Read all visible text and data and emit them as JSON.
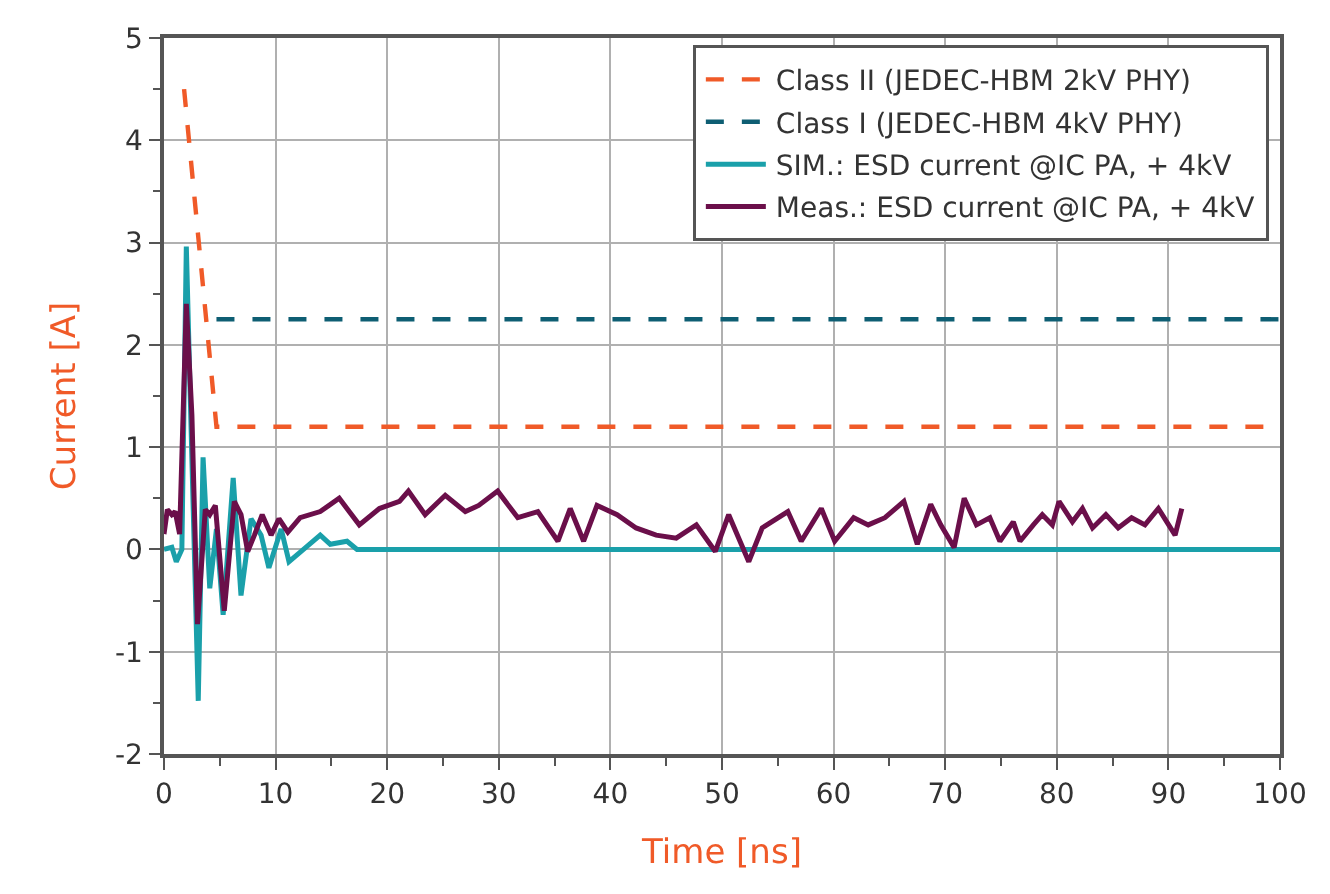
{
  "chart_data": {
    "type": "line",
    "xlabel": "Time [ns]",
    "ylabel": "Current [A]",
    "xlim": [
      0,
      100
    ],
    "xticks": [
      0,
      10,
      20,
      30,
      40,
      50,
      60,
      70,
      80,
      90,
      100
    ],
    "ylim": [
      -2,
      5
    ],
    "yticks": [
      -2,
      -1,
      0,
      1,
      2,
      3,
      4,
      5
    ],
    "grid": true,
    "legend": "top right",
    "marker": "none",
    "series": [
      {
        "name": "Class II (JEDEC-HBM 2kV PHY)",
        "color": "#f05a28",
        "line_style": "dashed",
        "x": [
          1.8,
          4.7,
          100
        ],
        "values": [
          4.5,
          1.2,
          1.2
        ]
      },
      {
        "name": "Class I (JEDEC-HBM 4kV PHY)",
        "color": "#0e5e73",
        "line_style": "dashed",
        "x": [
          4.7,
          100
        ],
        "values": [
          2.25,
          2.25
        ]
      },
      {
        "name": "SIM.: ESD current @IC PA, + 4kV",
        "color": "#1aa0aa",
        "line_style": "solid",
        "x": [
          0,
          0.7,
          1.1,
          1.6,
          2.0,
          3.07,
          3.5,
          4.1,
          4.7,
          5.3,
          6.2,
          6.9,
          7.8,
          8.7,
          9.4,
          10.5,
          11.2,
          12.5,
          14.0,
          14.9,
          16.4,
          17.3,
          18.1,
          100
        ],
        "values": [
          0,
          0.02,
          -0.12,
          0,
          2.96,
          -1.48,
          0.9,
          -0.38,
          0.2,
          -0.64,
          0.7,
          -0.45,
          0.3,
          0.14,
          -0.18,
          0.2,
          -0.12,
          0,
          0.14,
          0.05,
          0.08,
          0,
          0,
          0
        ]
      },
      {
        "name": "Meas.: ESD current @IC PA, + 4kV",
        "color": "#6b0f4a",
        "line_style": "solid",
        "x": [
          0,
          0.3,
          0.7,
          1.0,
          1.4,
          2.0,
          2.5,
          3.0,
          3.7,
          4.1,
          4.6,
          5.4,
          6.3,
          6.9,
          7.5,
          8.1,
          8.8,
          9.6,
          10.3,
          11.1,
          12.2,
          14.0,
          15.7,
          17.5,
          19.3,
          21.1,
          21.9,
          23.4,
          25.2,
          27.0,
          28.2,
          29.9,
          31.7,
          33.5,
          35.3,
          36.4,
          37.6,
          38.8,
          40.6,
          42.3,
          44.1,
          45.9,
          47.7,
          49.4,
          50.6,
          52.4,
          53.6,
          55.9,
          57.1,
          58.9,
          60.1,
          61.8,
          63.1,
          64.6,
          66.3,
          67.5,
          68.7,
          69.6,
          70.8,
          71.7,
          72.8,
          74.0,
          74.9,
          76.1,
          76.7,
          77.9,
          78.7,
          79.6,
          80.2,
          81.4,
          82.3,
          83.2,
          84.4,
          85.5,
          86.7,
          87.9,
          89.1,
          90.6,
          91.2
        ],
        "values": [
          0.15,
          0.39,
          0.34,
          0.37,
          0.15,
          2.4,
          1.31,
          -0.73,
          0.39,
          0.34,
          0.43,
          -0.6,
          0.47,
          0.34,
          -0.02,
          0.14,
          0.34,
          0.14,
          0.3,
          0.17,
          0.31,
          0.37,
          0.5,
          0.24,
          0.4,
          0.47,
          0.57,
          0.34,
          0.53,
          0.37,
          0.43,
          0.57,
          0.31,
          0.37,
          0.08,
          0.4,
          0.08,
          0.43,
          0.34,
          0.21,
          0.14,
          0.11,
          0.24,
          -0.02,
          0.34,
          -0.12,
          0.21,
          0.37,
          0.08,
          0.4,
          0.08,
          0.31,
          0.24,
          0.31,
          0.47,
          0.05,
          0.44,
          0.24,
          0.02,
          0.5,
          0.24,
          0.31,
          0.08,
          0.27,
          0.08,
          0.24,
          0.34,
          0.24,
          0.47,
          0.27,
          0.4,
          0.21,
          0.34,
          0.21,
          0.31,
          0.24,
          0.4,
          0.14,
          0.4
        ]
      }
    ]
  }
}
